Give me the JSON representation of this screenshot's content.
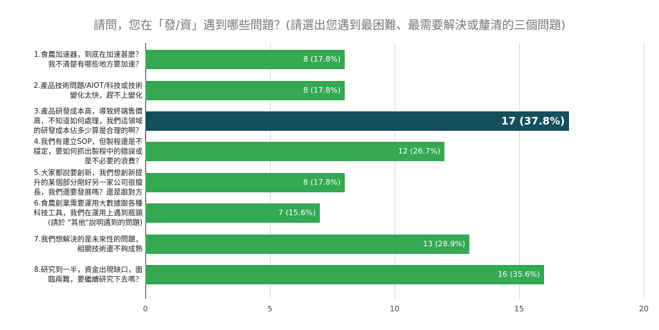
{
  "chart_data": {
    "type": "bar",
    "orientation": "horizontal",
    "title": "請問，您在「發/資」遇到哪些問題？(請選出您遇到最困難、最需要解決或釐清的三個問題)",
    "categories": [
      [
        "1.食農加速器，到底在加速甚麼？",
        "我不清楚有哪些地方要加速？"
      ],
      [
        "2.產品技術問題/AIOT/科技或技術",
        "變化太快，趕不上變化"
      ],
      [
        "3.產品研發成本高，導致終端售價",
        "高，不知道如何處理，我們這領域",
        "的研發成本佔多少算是合理的啊？"
      ],
      [
        "4.我們有建立SOP，但製程還是不",
        "穩定，要如何抓出製程中的錯誤或",
        "是不必要的浪費？"
      ],
      [
        "5.大家都說要創新，我們想創新提",
        "升的某個部分剛好另一家公司很擅",
        "長，我們還要發展嗎？還是跟對方"
      ],
      [
        "6.食農創業需要運用大數據跟各種",
        "科技工具，我們在運用上遇到瓶頸",
        "(請於 \"其他\"說明遇到的問題)"
      ],
      [
        "7.我們想解決的是未來性的問題，",
        "相關技術還不夠成熟"
      ],
      [
        "8.研究到一半，資金出現缺口，面",
        "臨兩難，要繼續研究下去嗎？"
      ]
    ],
    "values": [
      8,
      8,
      17,
      12,
      8,
      7,
      13,
      16
    ],
    "data_labels": [
      "8 (17.8%)",
      "8 (17.8%)",
      "17 (37.8%)",
      "12 (26.7%)",
      "8 (17.8%)",
      "7 (15.6%)",
      "13 (28.9%)",
      "16 (35.6%)"
    ],
    "highlight_index": 2,
    "xlim": [
      0,
      20
    ],
    "xticks": [
      "0",
      "5",
      "10",
      "15",
      "20"
    ],
    "grid": true,
    "colors": {
      "bar": "#34a853",
      "highlight": "#134f5c",
      "grid": "#d9d9d9",
      "title": "#757575"
    }
  }
}
